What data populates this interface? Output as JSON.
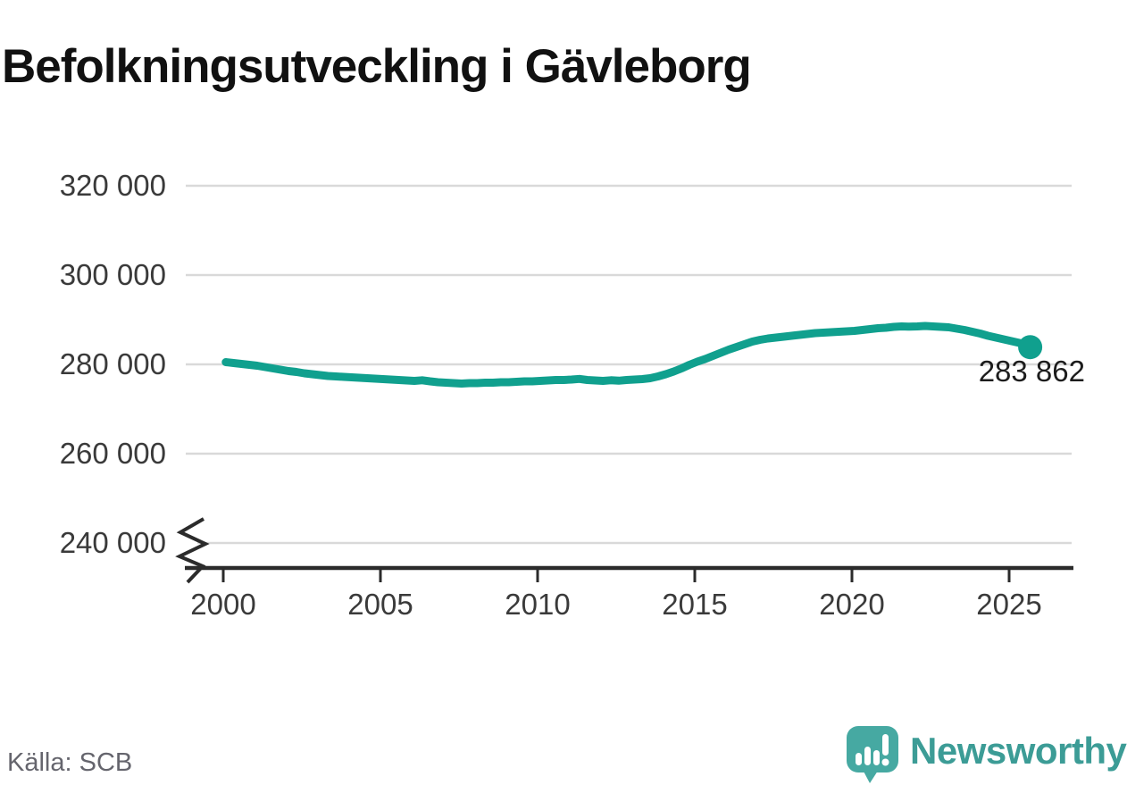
{
  "title": "Befolkningsutveckling i Gävleborg",
  "source": "Källa: SCB",
  "branding": {
    "logo_text": "Newsworthy",
    "logo_icon": "speech-bubble-with-bar-chart-and-exclamation"
  },
  "colors": {
    "background": "#ffffff",
    "line": "#10a08e",
    "grid": "#d9d9d9",
    "axis": "#2b2b2b",
    "title_text": "#111111",
    "tick_text": "#3a3a3a",
    "source_text": "#65656d",
    "brand_teal": "#3c9c96",
    "logo_fill": "#46a9a2"
  },
  "chart_data": {
    "type": "line",
    "title": "Befolkningsutveckling i Gävleborg",
    "xlabel": "",
    "ylabel": "",
    "x_range": [
      2000.08,
      2025.67
    ],
    "ylim": [
      236000,
      324000
    ],
    "y_axis_break": true,
    "grid": "horizontal",
    "legend": "none",
    "xticks": [
      2000,
      2005,
      2010,
      2015,
      2020,
      2025
    ],
    "yticks": [
      {
        "value": 320000,
        "label": "320 000"
      },
      {
        "value": 300000,
        "label": "300 000"
      },
      {
        "value": 280000,
        "label": "280 000"
      },
      {
        "value": 260000,
        "label": "260 000"
      },
      {
        "value": 240000,
        "label": "240 000"
      }
    ],
    "end_label": "283 862",
    "end_value": 283862,
    "series": [
      {
        "points": [
          [
            2000.08,
            280500
          ],
          [
            2000.33,
            280300
          ],
          [
            2000.58,
            280100
          ],
          [
            2000.83,
            279900
          ],
          [
            2001.08,
            279700
          ],
          [
            2001.33,
            279400
          ],
          [
            2001.58,
            279100
          ],
          [
            2001.83,
            278800
          ],
          [
            2002.08,
            278500
          ],
          [
            2002.33,
            278300
          ],
          [
            2002.58,
            278000
          ],
          [
            2002.83,
            277800
          ],
          [
            2003.08,
            277600
          ],
          [
            2003.33,
            277400
          ],
          [
            2003.58,
            277300
          ],
          [
            2003.83,
            277200
          ],
          [
            2004.08,
            277100
          ],
          [
            2004.33,
            277000
          ],
          [
            2004.58,
            276900
          ],
          [
            2004.83,
            276800
          ],
          [
            2005.08,
            276700
          ],
          [
            2005.33,
            276600
          ],
          [
            2005.58,
            276500
          ],
          [
            2005.83,
            276400
          ],
          [
            2006.08,
            276300
          ],
          [
            2006.33,
            276450
          ],
          [
            2006.58,
            276200
          ],
          [
            2006.83,
            276000
          ],
          [
            2007.08,
            275900
          ],
          [
            2007.33,
            275800
          ],
          [
            2007.58,
            275700
          ],
          [
            2007.83,
            275800
          ],
          [
            2008.08,
            275800
          ],
          [
            2008.33,
            275900
          ],
          [
            2008.58,
            275900
          ],
          [
            2008.83,
            276000
          ],
          [
            2009.08,
            276000
          ],
          [
            2009.33,
            276100
          ],
          [
            2009.58,
            276200
          ],
          [
            2009.83,
            276200
          ],
          [
            2010.08,
            276300
          ],
          [
            2010.33,
            276400
          ],
          [
            2010.58,
            276500
          ],
          [
            2010.83,
            276500
          ],
          [
            2011.08,
            276600
          ],
          [
            2011.33,
            276750
          ],
          [
            2011.58,
            276500
          ],
          [
            2011.83,
            276400
          ],
          [
            2012.08,
            276300
          ],
          [
            2012.33,
            276450
          ],
          [
            2012.58,
            276350
          ],
          [
            2012.83,
            276500
          ],
          [
            2013.08,
            276600
          ],
          [
            2013.33,
            276700
          ],
          [
            2013.58,
            276900
          ],
          [
            2013.83,
            277300
          ],
          [
            2014.08,
            277800
          ],
          [
            2014.33,
            278400
          ],
          [
            2014.58,
            279100
          ],
          [
            2014.83,
            279900
          ],
          [
            2015.08,
            280600
          ],
          [
            2015.33,
            281200
          ],
          [
            2015.58,
            281900
          ],
          [
            2015.83,
            282600
          ],
          [
            2016.08,
            283300
          ],
          [
            2016.33,
            283900
          ],
          [
            2016.58,
            284500
          ],
          [
            2016.83,
            285100
          ],
          [
            2017.08,
            285500
          ],
          [
            2017.33,
            285800
          ],
          [
            2017.58,
            286000
          ],
          [
            2017.83,
            286200
          ],
          [
            2018.08,
            286400
          ],
          [
            2018.33,
            286600
          ],
          [
            2018.58,
            286800
          ],
          [
            2018.83,
            287000
          ],
          [
            2019.08,
            287100
          ],
          [
            2019.33,
            287200
          ],
          [
            2019.58,
            287300
          ],
          [
            2019.83,
            287400
          ],
          [
            2020.08,
            287500
          ],
          [
            2020.33,
            287700
          ],
          [
            2020.58,
            287900
          ],
          [
            2020.83,
            288100
          ],
          [
            2021.08,
            288200
          ],
          [
            2021.33,
            288400
          ],
          [
            2021.58,
            288500
          ],
          [
            2021.83,
            288450
          ],
          [
            2022.08,
            288500
          ],
          [
            2022.33,
            288600
          ],
          [
            2022.58,
            288500
          ],
          [
            2022.83,
            288400
          ],
          [
            2023.08,
            288300
          ],
          [
            2023.33,
            288000
          ],
          [
            2023.58,
            287700
          ],
          [
            2023.83,
            287300
          ],
          [
            2024.08,
            286900
          ],
          [
            2024.33,
            286400
          ],
          [
            2024.58,
            286000
          ],
          [
            2024.83,
            285600
          ],
          [
            2025.08,
            285200
          ],
          [
            2025.33,
            284800
          ],
          [
            2025.5,
            284300
          ],
          [
            2025.67,
            283862
          ]
        ]
      }
    ]
  }
}
